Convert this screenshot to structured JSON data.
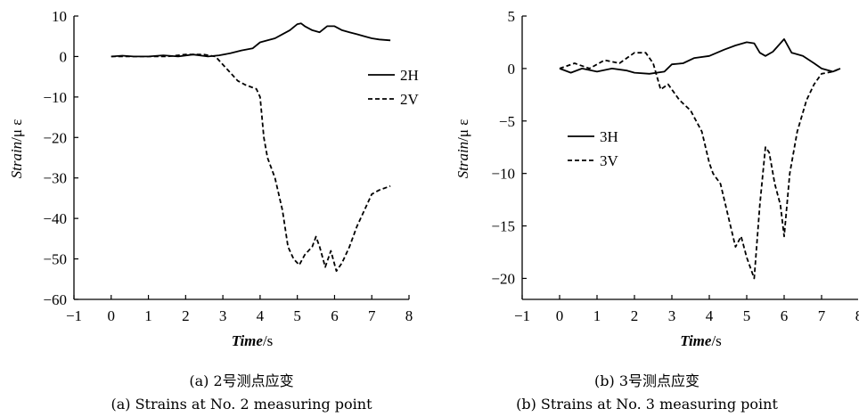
{
  "chart_data": [
    {
      "type": "line",
      "xlabel_italic": "Time",
      "xlabel_unit": "/s",
      "ylabel_italic": "Strain",
      "ylabel_unit": "/μ ε",
      "xlim": [
        -1,
        8
      ],
      "ylim": [
        -60,
        10
      ],
      "xticks": [
        -1,
        0,
        1,
        2,
        3,
        4,
        5,
        6,
        7,
        8
      ],
      "yticks": [
        -60,
        -50,
        -40,
        -30,
        -20,
        -10,
        0,
        10
      ],
      "legend_position": "right",
      "caption_cn": "(a) 2号测点应变",
      "caption_en": "(a) Strains at No. 2 measuring point",
      "series": [
        {
          "name": "2H",
          "style": "solid",
          "x": [
            0,
            0.3,
            0.6,
            1.0,
            1.4,
            1.8,
            2.2,
            2.6,
            2.9,
            3.2,
            3.5,
            3.8,
            4.0,
            4.2,
            4.4,
            4.6,
            4.8,
            5.0,
            5.1,
            5.2,
            5.4,
            5.6,
            5.8,
            6.0,
            6.2,
            6.4,
            6.6,
            6.8,
            7.0,
            7.2,
            7.5
          ],
          "y": [
            0,
            0.2,
            0,
            0,
            0.3,
            0,
            0.5,
            0,
            0.3,
            0.8,
            1.5,
            2,
            3.5,
            4,
            4.5,
            5.5,
            6.5,
            8,
            8.2,
            7.5,
            6.5,
            6,
            7.5,
            7.5,
            6.5,
            6,
            5.5,
            5,
            4.5,
            4.2,
            4
          ]
        },
        {
          "name": "2V",
          "style": "dashed",
          "x": [
            0,
            0.5,
            1.0,
            1.5,
            2.0,
            2.5,
            2.8,
            3.0,
            3.2,
            3.4,
            3.6,
            3.9,
            4.0,
            4.1,
            4.2,
            4.4,
            4.6,
            4.75,
            4.9,
            5.05,
            5.2,
            5.4,
            5.5,
            5.6,
            5.75,
            5.9,
            6.05,
            6.2,
            6.4,
            6.6,
            6.8,
            7.0,
            7.2,
            7.5
          ],
          "y": [
            0,
            0,
            0,
            0,
            0.5,
            0.5,
            0,
            -2,
            -4,
            -6,
            -7,
            -8,
            -10,
            -20,
            -25,
            -30,
            -38,
            -47,
            -50,
            -51.5,
            -49,
            -47,
            -44.5,
            -47,
            -52,
            -48,
            -53,
            -51,
            -47,
            -42,
            -38,
            -34,
            -33,
            -32
          ]
        }
      ]
    },
    {
      "type": "line",
      "xlabel_italic": "Time",
      "xlabel_unit": "/s",
      "ylabel_italic": "Strain",
      "ylabel_unit": "/μ ε",
      "xlim": [
        -1,
        8
      ],
      "ylim": [
        -22,
        5
      ],
      "xticks": [
        -1,
        0,
        1,
        2,
        3,
        4,
        5,
        6,
        7,
        8
      ],
      "yticks": [
        -20,
        -15,
        -10,
        -5,
        0,
        5
      ],
      "legend_position": "left",
      "caption_cn": "(b) 3号测点应变",
      "caption_en": "(b) Strains at No. 3 measuring point",
      "series": [
        {
          "name": "3H",
          "style": "solid",
          "x": [
            0,
            0.3,
            0.6,
            1.0,
            1.4,
            1.8,
            2.0,
            2.4,
            2.8,
            3.0,
            3.3,
            3.6,
            4.0,
            4.4,
            4.7,
            5.0,
            5.2,
            5.35,
            5.5,
            5.7,
            6.0,
            6.2,
            6.5,
            6.8,
            7.0,
            7.3,
            7.5
          ],
          "y": [
            0,
            -0.4,
            0,
            -0.3,
            0,
            -0.2,
            -0.4,
            -0.5,
            -0.3,
            0.4,
            0.5,
            1,
            1.2,
            1.8,
            2.2,
            2.5,
            2.4,
            1.5,
            1.2,
            1.6,
            2.8,
            1.5,
            1.2,
            0.5,
            0,
            -0.3,
            0
          ]
        },
        {
          "name": "3V",
          "style": "dashed",
          "x": [
            0,
            0.4,
            0.8,
            1.2,
            1.6,
            2.0,
            2.3,
            2.5,
            2.7,
            2.9,
            3.2,
            3.5,
            3.8,
            4.0,
            4.1,
            4.3,
            4.5,
            4.7,
            4.85,
            5.0,
            5.2,
            5.35,
            5.5,
            5.6,
            5.75,
            5.9,
            6.0,
            6.15,
            6.35,
            6.6,
            6.8,
            7.0,
            7.3,
            7.5
          ],
          "y": [
            0,
            0.5,
            0,
            0.8,
            0.5,
            1.5,
            1.5,
            0.5,
            -2,
            -1.5,
            -3,
            -4,
            -6,
            -9,
            -10,
            -11,
            -14,
            -17,
            -16,
            -18,
            -20,
            -13,
            -7.5,
            -8,
            -11,
            -13,
            -16,
            -10,
            -6,
            -3,
            -1.5,
            -0.5,
            -0.3,
            0
          ]
        }
      ]
    }
  ]
}
